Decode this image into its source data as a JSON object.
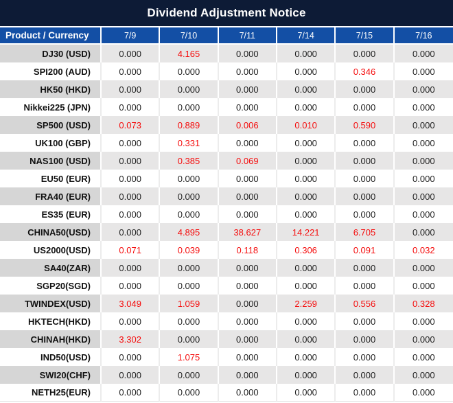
{
  "title": "Dividend Adjustment Notice",
  "chart_data": {
    "type": "table",
    "title": "Dividend Adjustment Notice",
    "product_header": "Product / Currency",
    "categories": [
      "7/9",
      "7/10",
      "7/11",
      "7/14",
      "7/15",
      "7/16"
    ],
    "rows": [
      {
        "product": "DJ30 (USD)",
        "values": [
          "0.000",
          "4.165",
          "0.000",
          "0.000",
          "0.000",
          "0.000"
        ],
        "red_indices": [
          1
        ]
      },
      {
        "product": "SPI200 (AUD)",
        "values": [
          "0.000",
          "0.000",
          "0.000",
          "0.000",
          "0.346",
          "0.000"
        ],
        "red_indices": [
          4
        ]
      },
      {
        "product": "HK50 (HKD)",
        "values": [
          "0.000",
          "0.000",
          "0.000",
          "0.000",
          "0.000",
          "0.000"
        ],
        "red_indices": []
      },
      {
        "product": "Nikkei225 (JPN)",
        "values": [
          "0.000",
          "0.000",
          "0.000",
          "0.000",
          "0.000",
          "0.000"
        ],
        "red_indices": []
      },
      {
        "product": "SP500 (USD)",
        "values": [
          "0.073",
          "0.889",
          "0.006",
          "0.010",
          "0.590",
          "0.000"
        ],
        "red_indices": [
          0,
          1,
          2,
          3,
          4
        ]
      },
      {
        "product": "UK100 (GBP)",
        "values": [
          "0.000",
          "0.331",
          "0.000",
          "0.000",
          "0.000",
          "0.000"
        ],
        "red_indices": [
          1
        ]
      },
      {
        "product": "NAS100 (USD)",
        "values": [
          "0.000",
          "0.385",
          "0.069",
          "0.000",
          "0.000",
          "0.000"
        ],
        "red_indices": [
          1,
          2
        ]
      },
      {
        "product": "EU50 (EUR)",
        "values": [
          "0.000",
          "0.000",
          "0.000",
          "0.000",
          "0.000",
          "0.000"
        ],
        "red_indices": []
      },
      {
        "product": "FRA40 (EUR)",
        "values": [
          "0.000",
          "0.000",
          "0.000",
          "0.000",
          "0.000",
          "0.000"
        ],
        "red_indices": []
      },
      {
        "product": "ES35 (EUR)",
        "values": [
          "0.000",
          "0.000",
          "0.000",
          "0.000",
          "0.000",
          "0.000"
        ],
        "red_indices": []
      },
      {
        "product": "CHINA50(USD)",
        "values": [
          "0.000",
          "4.895",
          "38.627",
          "14.221",
          "6.705",
          "0.000"
        ],
        "red_indices": [
          1,
          2,
          3,
          4
        ]
      },
      {
        "product": "US2000(USD)",
        "values": [
          "0.071",
          "0.039",
          "0.118",
          "0.306",
          "0.091",
          "0.032"
        ],
        "red_indices": [
          0,
          1,
          2,
          3,
          4,
          5
        ]
      },
      {
        "product": "SA40(ZAR)",
        "values": [
          "0.000",
          "0.000",
          "0.000",
          "0.000",
          "0.000",
          "0.000"
        ],
        "red_indices": []
      },
      {
        "product": "SGP20(SGD)",
        "values": [
          "0.000",
          "0.000",
          "0.000",
          "0.000",
          "0.000",
          "0.000"
        ],
        "red_indices": []
      },
      {
        "product": "TWINDEX(USD)",
        "values": [
          "3.049",
          "1.059",
          "0.000",
          "2.259",
          "0.556",
          "0.328"
        ],
        "red_indices": [
          0,
          1,
          3,
          4,
          5
        ]
      },
      {
        "product": "HKTECH(HKD)",
        "values": [
          "0.000",
          "0.000",
          "0.000",
          "0.000",
          "0.000",
          "0.000"
        ],
        "red_indices": []
      },
      {
        "product": "CHINAH(HKD)",
        "values": [
          "3.302",
          "0.000",
          "0.000",
          "0.000",
          "0.000",
          "0.000"
        ],
        "red_indices": [
          0
        ]
      },
      {
        "product": "IND50(USD)",
        "values": [
          "0.000",
          "1.075",
          "0.000",
          "0.000",
          "0.000",
          "0.000"
        ],
        "red_indices": [
          1
        ]
      },
      {
        "product": "SWI20(CHF)",
        "values": [
          "0.000",
          "0.000",
          "0.000",
          "0.000",
          "0.000",
          "0.000"
        ],
        "red_indices": []
      },
      {
        "product": "NETH25(EUR)",
        "values": [
          "0.000",
          "0.000",
          "0.000",
          "0.000",
          "0.000",
          "0.000"
        ],
        "red_indices": []
      }
    ]
  },
  "colors": {
    "title_bar_bg": "#0d1b36",
    "header_bg": "#134fa5",
    "header_text": "#ffffff",
    "row_alt_product_bg": "#d6d6d6",
    "row_alt_value_bg": "#e7e6e6",
    "row_white_bg": "#ffffff",
    "highlight_red": "#f50d0d",
    "text_dark": "#212121"
  }
}
